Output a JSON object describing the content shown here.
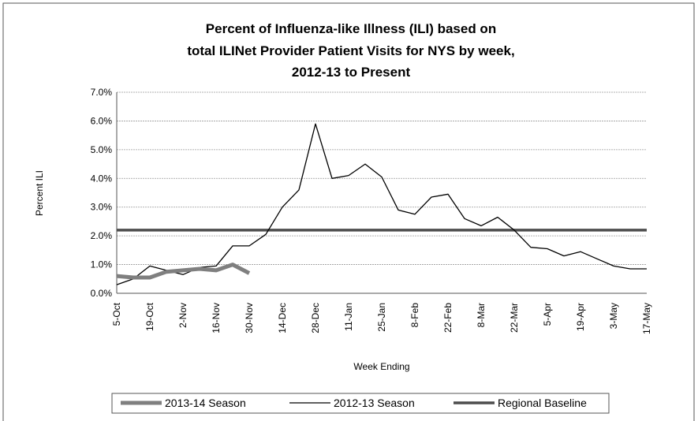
{
  "chart_data": {
    "type": "line",
    "title": [
      "Percent of Influenza-like Illness (ILI) based on",
      "total ILINet Provider Patient Visits for NYS by week,",
      "2012-13 to Present"
    ],
    "y_label": "Percent ILI",
    "x_label": "Week Ending",
    "categories": [
      "5-Oct",
      null,
      "19-Oct",
      null,
      "2-Nov",
      null,
      "16-Nov",
      null,
      "30-Nov",
      null,
      "14-Dec",
      null,
      "28-Dec",
      null,
      "11-Jan",
      null,
      "25-Jan",
      null,
      "8-Feb",
      null,
      "22-Feb",
      null,
      "8-Mar",
      null,
      "22-Mar",
      null,
      "5-Apr",
      null,
      "19-Apr",
      null,
      "3-May",
      null,
      "17-May"
    ],
    "series": [
      {
        "name": "2013-14 Season",
        "color": "#7f7f7f",
        "values": [
          0.6,
          0.55,
          0.55,
          0.75,
          0.8,
          0.85,
          0.8,
          1.0,
          0.7,
          null,
          null,
          null,
          null,
          null,
          null,
          null,
          null,
          null,
          null,
          null,
          null,
          null,
          null,
          null,
          null,
          null,
          null,
          null,
          null,
          null,
          null,
          null,
          null
        ]
      },
      {
        "name": "2012-13 Season",
        "color": "#000000",
        "values": [
          0.3,
          0.5,
          0.95,
          0.8,
          0.65,
          0.9,
          0.95,
          1.65,
          1.65,
          2.05,
          3.0,
          3.6,
          5.9,
          4.0,
          4.1,
          4.5,
          4.05,
          2.9,
          2.75,
          3.35,
          3.45,
          2.6,
          2.35,
          2.65,
          2.2,
          1.6,
          1.55,
          1.3,
          1.45,
          1.2,
          0.95,
          0.85,
          0.85
        ]
      },
      {
        "name": "Regional Baseline",
        "color": "#4d4d4d",
        "values": [
          2.2,
          2.2,
          2.2,
          2.2,
          2.2,
          2.2,
          2.2,
          2.2,
          2.2,
          2.2,
          2.2,
          2.2,
          2.2,
          2.2,
          2.2,
          2.2,
          2.2,
          2.2,
          2.2,
          2.2,
          2.2,
          2.2,
          2.2,
          2.2,
          2.2,
          2.2,
          2.2,
          2.2,
          2.2,
          2.2,
          2.2,
          2.2,
          2.2
        ]
      }
    ],
    "ylim": [
      0,
      7
    ],
    "yticks": [
      {
        "value": 0,
        "label": "0.0%"
      },
      {
        "value": 1,
        "label": "1.0%"
      },
      {
        "value": 2,
        "label": "2.0%"
      },
      {
        "value": 3,
        "label": "3.0%"
      },
      {
        "value": 4,
        "label": "4.0%"
      },
      {
        "value": 5,
        "label": "5.0%"
      },
      {
        "value": 6,
        "label": "6.0%"
      },
      {
        "value": 7,
        "label": "7.0%"
      }
    ],
    "grid": true,
    "legend": "bottom"
  }
}
